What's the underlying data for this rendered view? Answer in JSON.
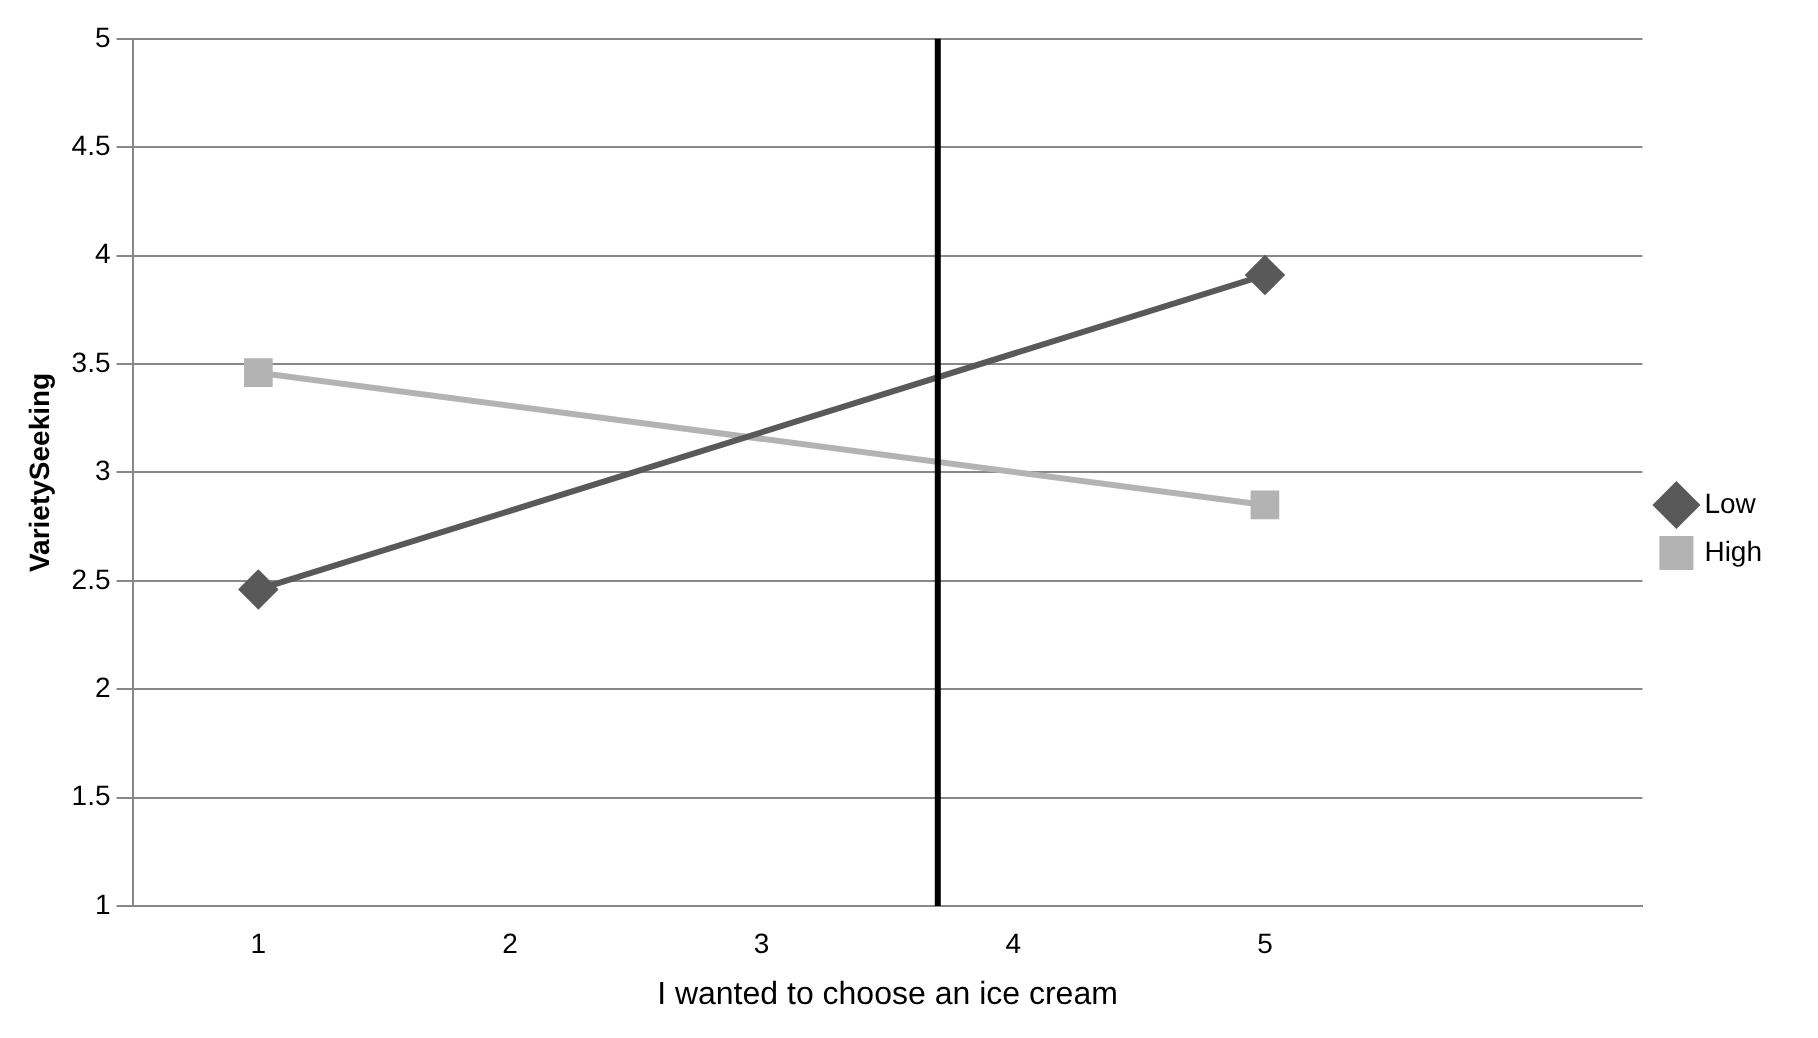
{
  "chart_data": {
    "type": "line",
    "xlabel": "I wanted to choose an ice cream",
    "ylabel": "VarietySeeking",
    "x": [
      1,
      5
    ],
    "xlim": [
      0.5,
      6.5
    ],
    "xticks": [
      1,
      2,
      3,
      4,
      5
    ],
    "ylim": [
      1,
      5
    ],
    "yticks": [
      1,
      1.5,
      2,
      2.5,
      3,
      3.5,
      4,
      4.5,
      5
    ],
    "grid": "y",
    "legend": "right",
    "series": [
      {
        "name": "Low",
        "color": "#595959",
        "marker": "diamond",
        "values": [
          2.46,
          3.91
        ]
      },
      {
        "name": "High",
        "color": "#b3b3b3",
        "marker": "square",
        "values": [
          3.46,
          2.85
        ]
      }
    ],
    "ref_lines": [
      {
        "axis": "x",
        "value": 3.7,
        "color": "#000000"
      }
    ]
  }
}
